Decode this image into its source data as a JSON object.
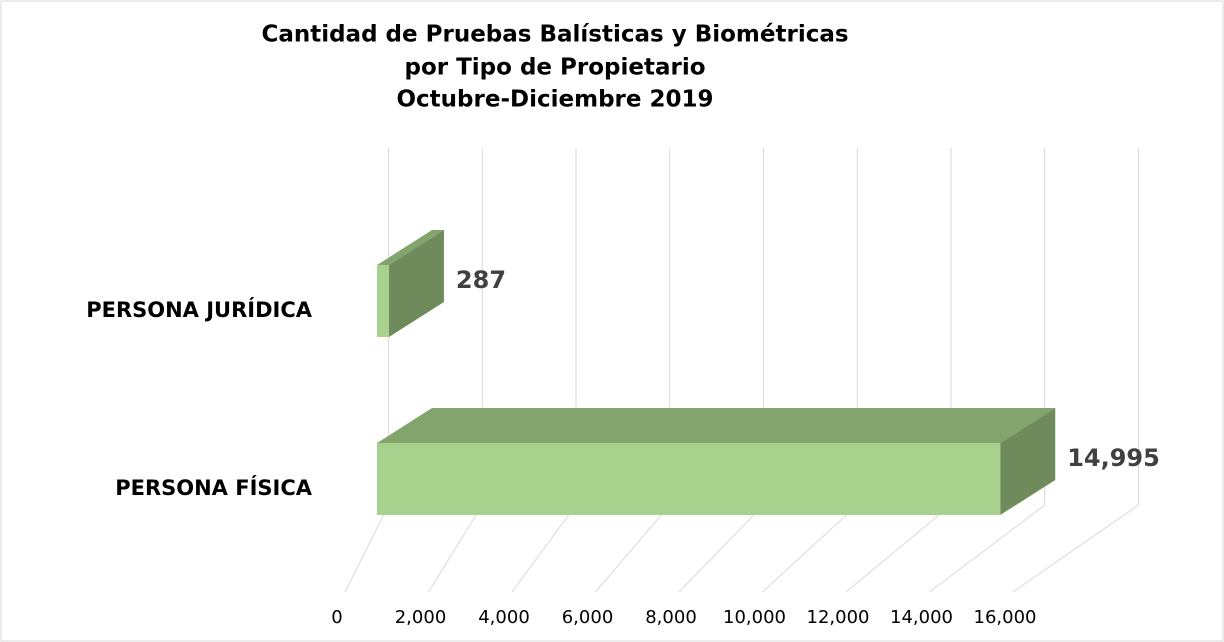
{
  "chart_data": {
    "type": "bar3d",
    "title": [
      "Cantidad de Pruebas Balísticas y Biométricas",
      "por Tipo de Propietario",
      "Octubre-Diciembre 2019"
    ],
    "categories": [
      "PERSONA JURÍDICA",
      "PERSONA FÍSICA"
    ],
    "values": [
      287,
      14995
    ],
    "value_labels": [
      "287",
      "14,995"
    ],
    "colors": {
      "front": "#a9d18e",
      "top": "#84a46e",
      "side": "#6f8a5b"
    },
    "xlim": [
      0,
      16000
    ],
    "xticks": [
      0,
      {
        "value": 2000,
        "label": "2,000"
      },
      {
        "value": 4000,
        "label": "4,000"
      },
      {
        "value": 6000,
        "label": "6,000"
      },
      {
        "value": 8000,
        "label": "8,000"
      },
      {
        "value": 10000,
        "label": "10,000"
      },
      {
        "value": 12000,
        "label": "12,000"
      },
      {
        "value": 14000,
        "label": "14,000"
      },
      {
        "value": 16000,
        "label": "16,000"
      }
    ],
    "grid": true
  }
}
